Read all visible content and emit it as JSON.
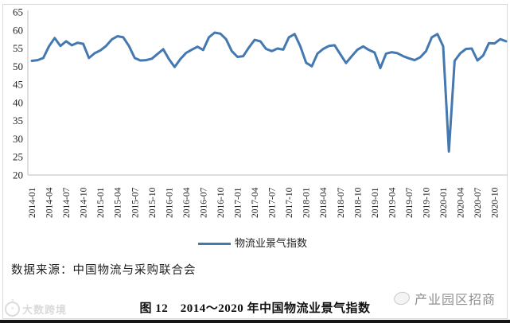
{
  "figure": {
    "source_note": "数据来源：中国物流与采购联合会",
    "caption": "图 12　2014～2020 年中国物流业景气指数",
    "watermark_left": "大数跨境",
    "watermark_right": "产业园区招商"
  },
  "chart_data": {
    "type": "line",
    "title": "",
    "legend_position": "bottom",
    "grid": false,
    "line_color": "#4478b0",
    "axis_color": "#bfbfbf",
    "ylim": [
      20,
      65
    ],
    "y_ticks": [
      65,
      60,
      55,
      50,
      45,
      40,
      35,
      30,
      25,
      20
    ],
    "x_tick_labels": [
      "2014-01",
      "2014-04",
      "2014-07",
      "2014-10",
      "2015-01",
      "2015-04",
      "2015-07",
      "2015-10",
      "2016-01",
      "2016-04",
      "2016-07",
      "2016-10",
      "2017-01",
      "2017-04",
      "2017-07",
      "2017-10",
      "2018-01",
      "2018-04",
      "2018-07",
      "2018-10",
      "2019-01",
      "2019-04",
      "2019-07",
      "2019-10",
      "2020-01",
      "2020-04",
      "2020-07",
      "2020-10"
    ],
    "x_interval": "monthly",
    "x_start": "2014-01",
    "x_end": "2020-12",
    "series": [
      {
        "name": "物流业景气指数",
        "color": "#4478b0",
        "values": [
          51.5,
          51.7,
          52.3,
          55.5,
          57.8,
          55.6,
          56.9,
          55.8,
          56.5,
          56.2,
          52.3,
          53.6,
          54.4,
          55.6,
          57.4,
          58.3,
          58.0,
          55.6,
          52.3,
          51.6,
          51.7,
          52.1,
          53.4,
          54.7,
          52.0,
          49.8,
          52.0,
          53.7,
          54.6,
          55.4,
          54.5,
          58.0,
          59.3,
          59.0,
          57.5,
          54.2,
          52.6,
          52.8,
          55.2,
          57.3,
          56.9,
          54.8,
          54.2,
          54.9,
          54.6,
          58.0,
          58.9,
          55.5,
          51.0,
          50.0,
          53.5,
          54.8,
          55.6,
          55.8,
          53.3,
          50.9,
          52.8,
          54.6,
          55.5,
          54.5,
          53.8,
          49.5,
          53.5,
          53.9,
          53.6,
          52.8,
          52.2,
          51.7,
          52.5,
          54.2,
          58.0,
          58.9,
          55.5,
          26.5,
          51.5,
          53.6,
          54.8,
          54.9,
          51.6,
          53.0,
          56.4,
          56.3,
          57.5,
          56.9
        ]
      }
    ]
  }
}
